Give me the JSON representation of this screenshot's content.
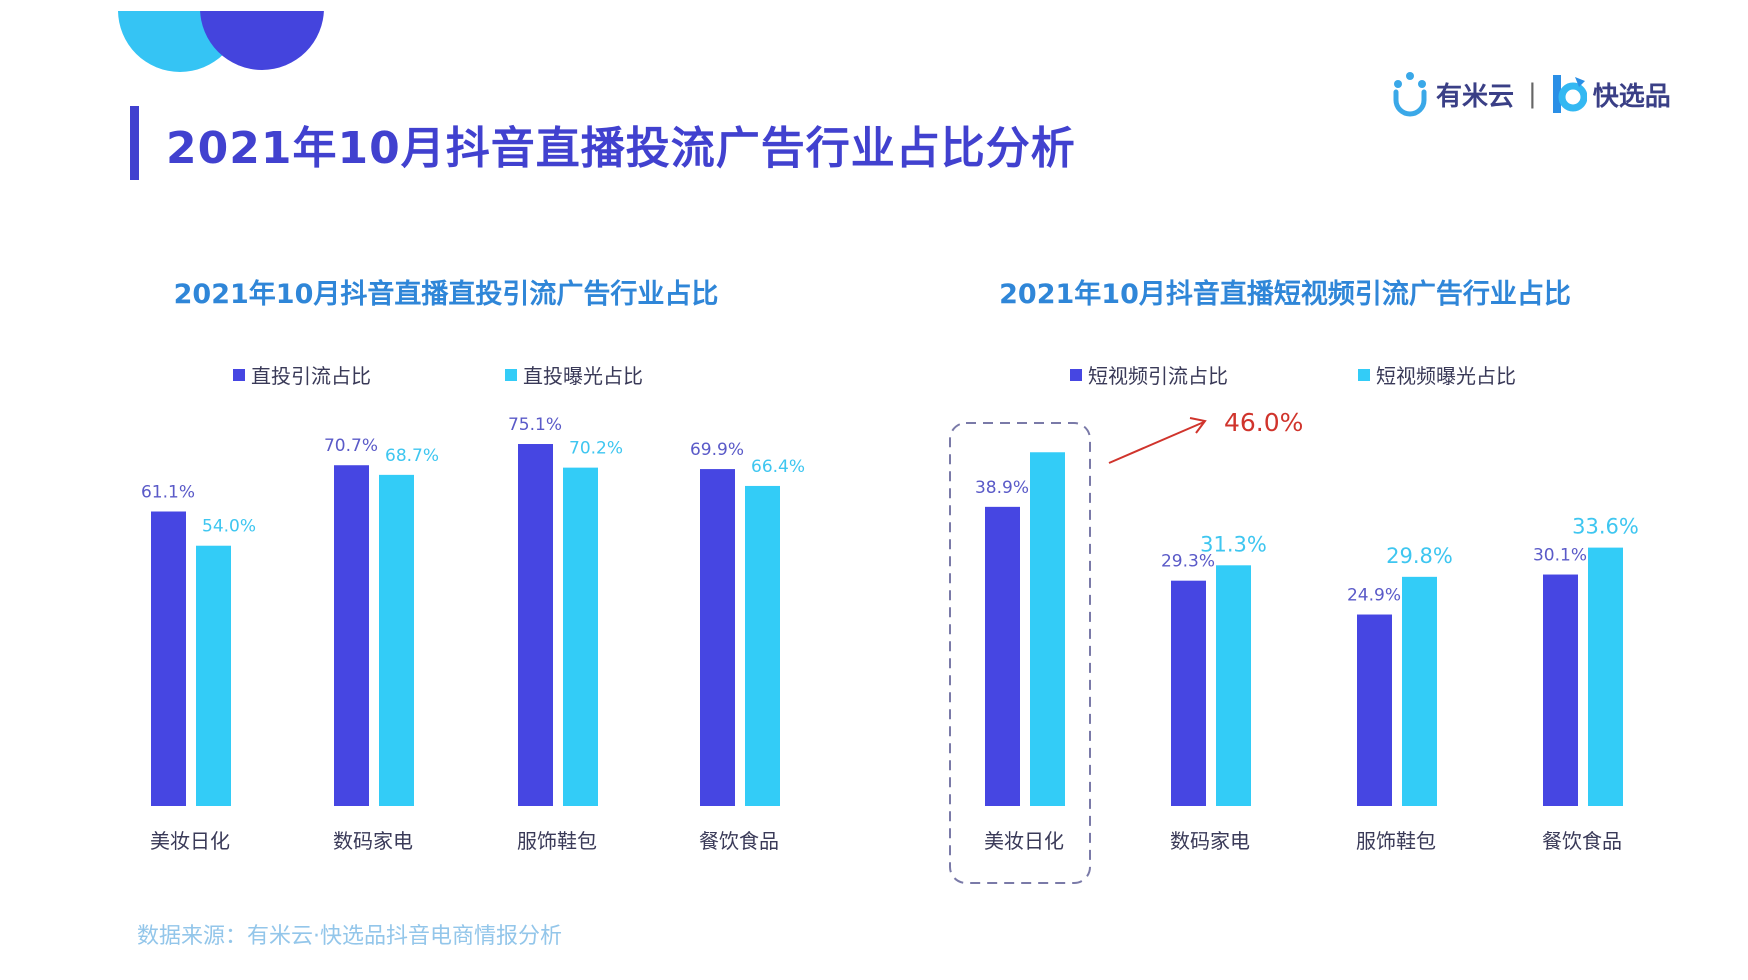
{
  "title": "2021年10月抖音直播投流广告行业占比分析",
  "logo": {
    "brand1": "有米云",
    "separator": "|",
    "brand2": "快选品"
  },
  "source": "数据来源：有米云·快选品抖音电商情报分析",
  "colors": {
    "series1": "#4646e2",
    "series2": "#33ccf7",
    "label1": "#5a5ac8",
    "label2": "#3ec6f0",
    "annotation": "#d0342c",
    "title": "#4141cf",
    "subtitle": "#2f86d8"
  },
  "chart_data": [
    {
      "type": "bar",
      "title": "2021年10月抖音直播直投引流广告行业占比",
      "categories": [
        "美妆日化",
        "数码家电",
        "服饰鞋包",
        "餐饮食品"
      ],
      "series": [
        {
          "name": "直投引流占比",
          "values": [
            61.1,
            70.7,
            75.1,
            69.9
          ],
          "labels": [
            "61.1%",
            "70.7%",
            "75.1%",
            "69.9%"
          ]
        },
        {
          "name": "直投曝光占比",
          "values": [
            54.0,
            68.7,
            70.2,
            66.4
          ],
          "labels": [
            "54.0%",
            "68.7%",
            "70.2%",
            "66.4%"
          ]
        }
      ],
      "unit": "%",
      "legend": "top",
      "grid": false
    },
    {
      "type": "bar",
      "title": "2021年10月抖音直播短视频引流广告行业占比",
      "categories": [
        "美妆日化",
        "数码家电",
        "服饰鞋包",
        "餐饮食品"
      ],
      "series": [
        {
          "name": "短视频引流占比",
          "values": [
            38.9,
            29.3,
            24.9,
            30.1
          ],
          "labels": [
            "38.9%",
            "29.3%",
            "24.9%",
            "30.1%"
          ]
        },
        {
          "name": "短视频曝光占比",
          "values": [
            46.0,
            31.3,
            29.8,
            33.6
          ],
          "labels": [
            "",
            "31.3%",
            "29.8%",
            "33.6%"
          ]
        }
      ],
      "annotation": {
        "text": "46.0%",
        "category": "美妆日化",
        "highlight": "dashed-box"
      },
      "unit": "%",
      "legend": "top",
      "grid": false
    }
  ]
}
